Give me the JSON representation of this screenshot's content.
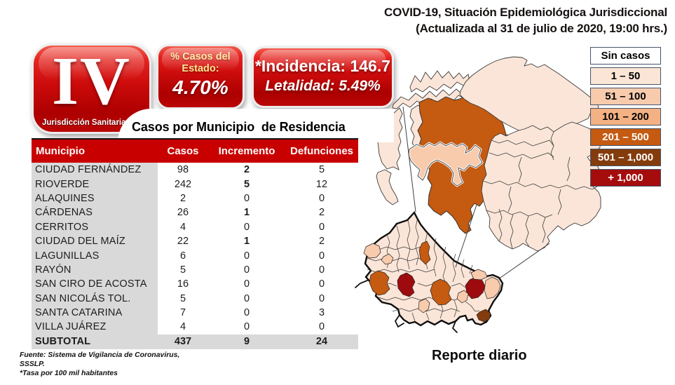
{
  "header": {
    "title_line1": "COVID-19, Situación Epidemiológica Jurisdiccional",
    "title_line2": "(Actualizada al 31 de julio de 2020, 19:00 hrs.)"
  },
  "jurisdiction_badge": {
    "number": "IV",
    "label": "Jurisdicción Sanitaria"
  },
  "state_cases_badge": {
    "label": "% Casos del Estado:",
    "value": "4.70%"
  },
  "rates_badge": {
    "line1": "*Incidencia: 146.7",
    "line2": "Letalidad: 5.49%"
  },
  "table": {
    "title": "Casos por Municipio  de Residencia",
    "columns": [
      "Municipio",
      "Casos",
      "Incremento",
      "Defunciones"
    ],
    "rows": [
      {
        "name": "CIUDAD FERNÁNDEZ",
        "casos": "98",
        "incremento": "2",
        "defunciones": "5"
      },
      {
        "name": "RIOVERDE",
        "casos": "242",
        "incremento": "5",
        "defunciones": "12"
      },
      {
        "name": "ALAQUINES",
        "casos": "2",
        "incremento": "0",
        "defunciones": "0"
      },
      {
        "name": "CÁRDENAS",
        "casos": "26",
        "incremento": "1",
        "defunciones": "2"
      },
      {
        "name": "CERRITOS",
        "casos": "4",
        "incremento": "0",
        "defunciones": "0"
      },
      {
        "name": "CIUDAD DEL MAÍZ",
        "casos": "22",
        "incremento": "1",
        "defunciones": "2"
      },
      {
        "name": "LAGUNILLAS",
        "casos": "6",
        "incremento": "0",
        "defunciones": "0"
      },
      {
        "name": "RAYÓN",
        "casos": "5",
        "incremento": "0",
        "defunciones": "0"
      },
      {
        "name": "SAN CIRO DE ACOSTA",
        "casos": "16",
        "incremento": "0",
        "defunciones": "0"
      },
      {
        "name": "SAN NICOLÁS TOL.",
        "casos": "5",
        "incremento": "0",
        "defunciones": "0"
      },
      {
        "name": "SANTA CATARINA",
        "casos": "7",
        "incremento": "0",
        "defunciones": "3"
      },
      {
        "name": "VILLA JUÁREZ",
        "casos": "4",
        "incremento": "0",
        "defunciones": "0"
      }
    ],
    "subtotal": {
      "name": "SUBTOTAL",
      "casos": "437",
      "incremento": "9",
      "defunciones": "24"
    }
  },
  "footnotes": [
    "Fuente: Sistema de Vigilancia  de Coronavirus,",
    "SSSLP.",
    "*Tasa por 100 mil habitantes"
  ],
  "legend": {
    "items": [
      {
        "label": "Sin casos",
        "color": "#FFFFFF",
        "text": "#000000"
      },
      {
        "label": "1 – 50",
        "color": "#FBE5D6",
        "text": "#000000"
      },
      {
        "label": "51 – 100",
        "color": "#F8CBAD",
        "text": "#000000"
      },
      {
        "label": "101 – 200",
        "color": "#F4B183",
        "text": "#000000"
      },
      {
        "label": "201 – 500",
        "color": "#C55A11",
        "text": "#FFFFFF"
      },
      {
        "label": "501 – 1,000",
        "color": "#843C0C",
        "text": "#FFFFFF"
      },
      {
        "label": "+ 1,000",
        "color": "#A50D0D",
        "text": "#FFFFFF"
      }
    ]
  },
  "map_caption": "Reporte diario",
  "colors": {
    "header_red": "#C80000",
    "cell_gray": "#D9D9D9",
    "map_light": "#FAE5D8",
    "map_mid": "#F8CBAD",
    "map_orange": "#C55A11",
    "map_darkred": "#9E0B0F",
    "map_brown": "#843C0C"
  }
}
